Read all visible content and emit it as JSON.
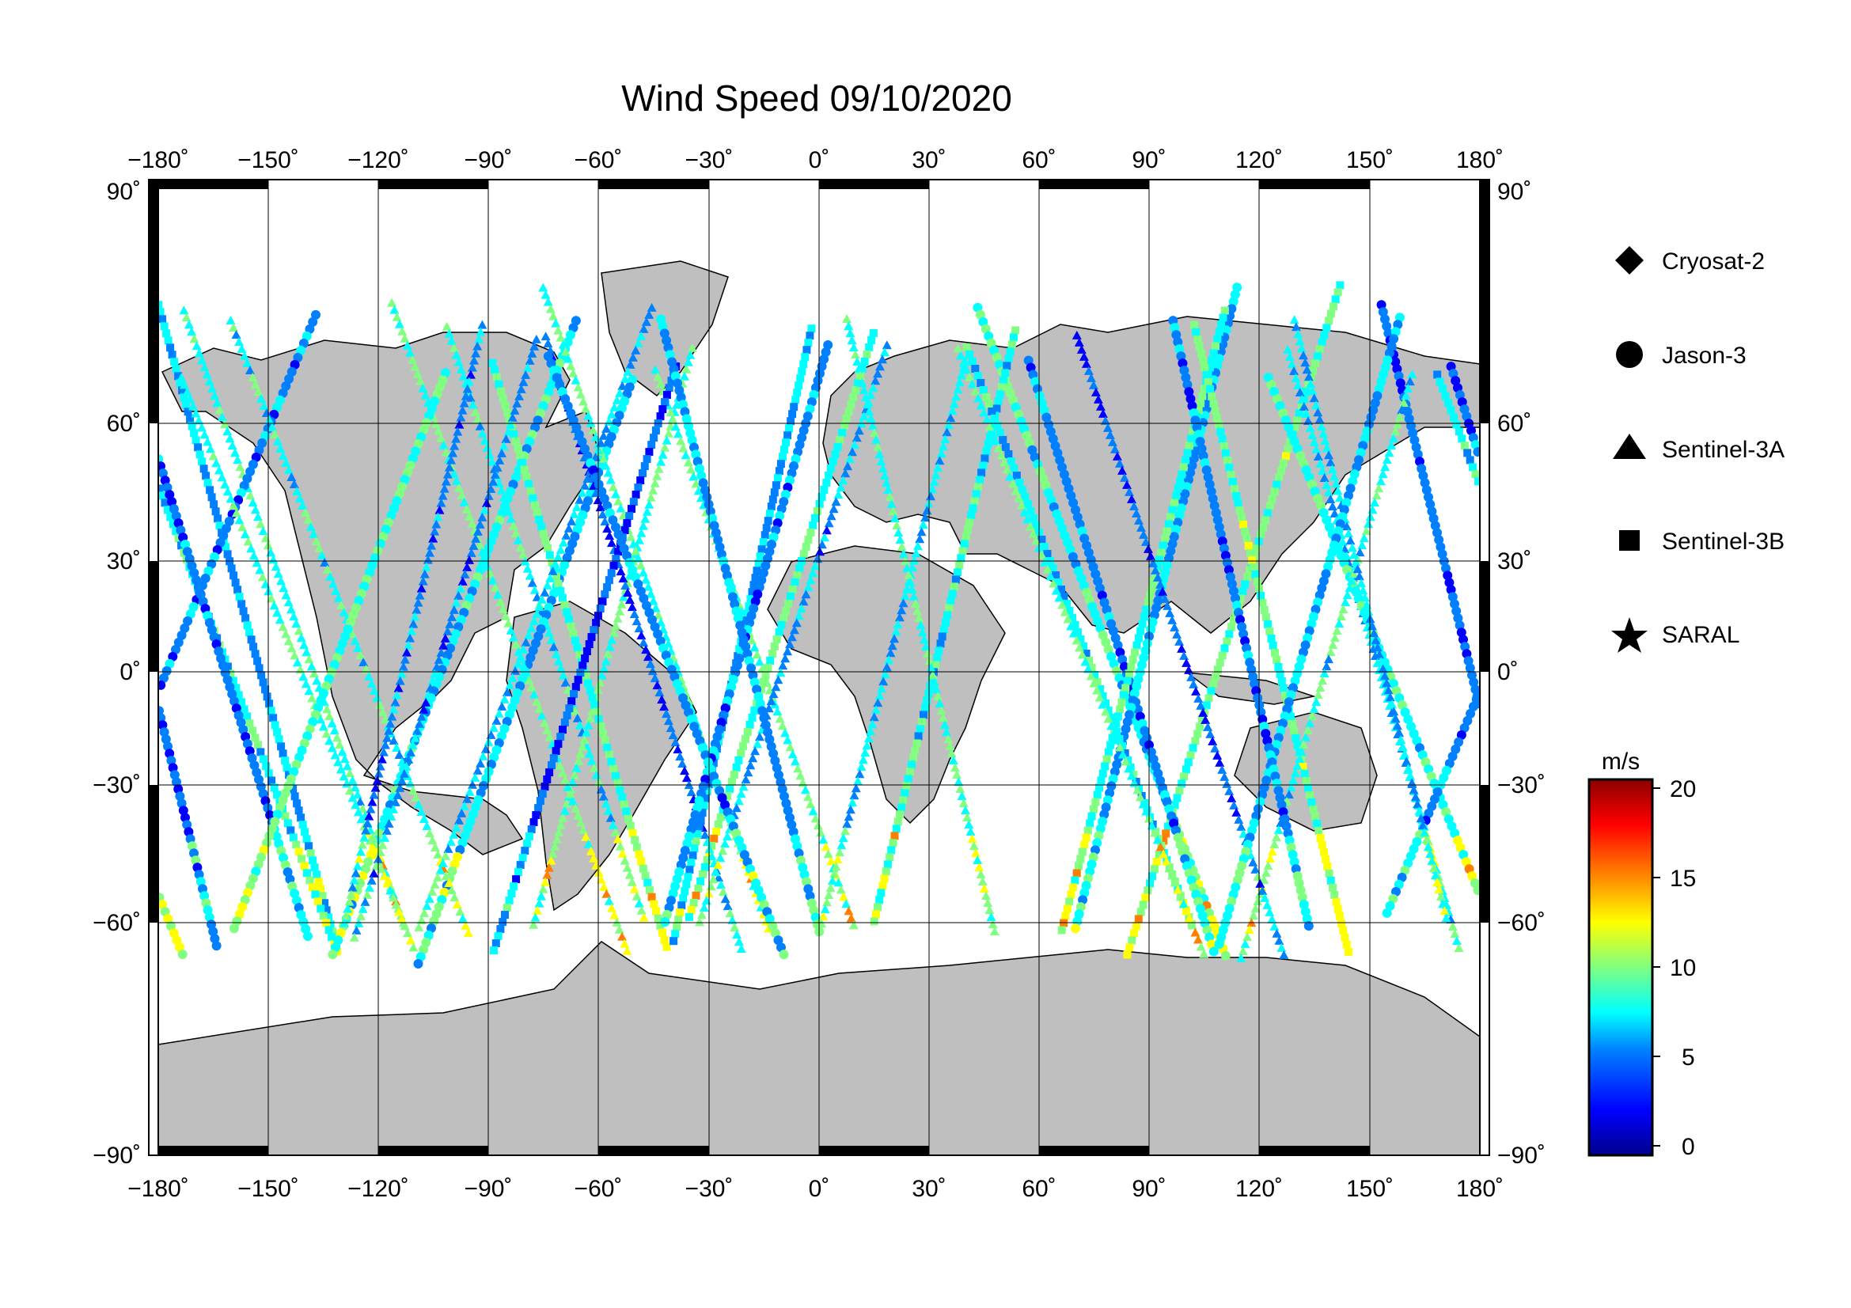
{
  "title": "Wind Speed 09/10/2020",
  "lon_ticks": [
    "−180˚",
    "−150˚",
    "−120˚",
    "−90˚",
    "−60˚",
    "−30˚",
    "0˚",
    "30˚",
    "60˚",
    "90˚",
    "120˚",
    "150˚",
    "180˚"
  ],
  "lat_ticks": [
    "90˚",
    "60˚",
    "30˚",
    "0˚",
    "−30˚",
    "−60˚",
    "−90˚"
  ],
  "legend": [
    {
      "name": "Cryosat-2",
      "marker": "diamond"
    },
    {
      "name": "Jason-3",
      "marker": "circle"
    },
    {
      "name": "Sentinel-3A",
      "marker": "triangle"
    },
    {
      "name": "Sentinel-3B",
      "marker": "square"
    },
    {
      "name": "SARAL",
      "marker": "star"
    }
  ],
  "colorbar": {
    "unit": "m/s",
    "ticks": [
      "20",
      "15",
      "10",
      "5",
      "0"
    ],
    "min": 0,
    "max": 21,
    "colors": [
      "#00008b",
      "#0000ff",
      "#0080ff",
      "#00ffff",
      "#80ff80",
      "#ffff00",
      "#ff8000",
      "#ff0000",
      "#8b0000"
    ]
  },
  "colors": {
    "land": "#bfbfbf",
    "ocean": "#ffffff",
    "frame": "#000000"
  }
}
